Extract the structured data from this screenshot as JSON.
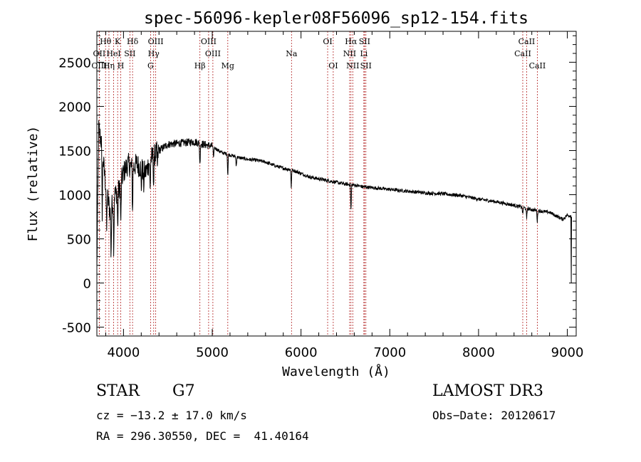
{
  "chart_data": {
    "type": "line",
    "title": "spec-56096-kepler08F56096_sp12-154.fits",
    "xlabel": "Wavelength (Å)",
    "ylabel": "Flux (relative)",
    "xlim": [
      3700,
      9100
    ],
    "ylim": [
      -600,
      2850
    ],
    "xticks": [
      4000,
      5000,
      6000,
      7000,
      8000,
      9000
    ],
    "yticks": [
      -500,
      0,
      500,
      1000,
      1500,
      2000,
      2500
    ],
    "x_minor_step": 200,
    "y_minor_step": 100,
    "line_color": "#000000",
    "marker_color": "#b22222",
    "continuum": [
      [
        3700,
        150
      ],
      [
        3720,
        1750
      ],
      [
        3750,
        1600
      ],
      [
        3800,
        1100
      ],
      [
        3850,
        800
      ],
      [
        3900,
        1000
      ],
      [
        3950,
        1050
      ],
      [
        4000,
        1250
      ],
      [
        4050,
        1350
      ],
      [
        4100,
        1300
      ],
      [
        4150,
        1350
      ],
      [
        4200,
        1300
      ],
      [
        4250,
        1250
      ],
      [
        4300,
        1400
      ],
      [
        4350,
        1450
      ],
      [
        4400,
        1500
      ],
      [
        4500,
        1570
      ],
      [
        4600,
        1580
      ],
      [
        4700,
        1590
      ],
      [
        4800,
        1600
      ],
      [
        4900,
        1570
      ],
      [
        5000,
        1550
      ],
      [
        5100,
        1480
      ],
      [
        5200,
        1450
      ],
      [
        5300,
        1420
      ],
      [
        5400,
        1400
      ],
      [
        5500,
        1390
      ],
      [
        5600,
        1370
      ],
      [
        5700,
        1330
      ],
      [
        5800,
        1300
      ],
      [
        5900,
        1280
      ],
      [
        6000,
        1240
      ],
      [
        6100,
        1200
      ],
      [
        6200,
        1180
      ],
      [
        6300,
        1160
      ],
      [
        6400,
        1140
      ],
      [
        6500,
        1120
      ],
      [
        6600,
        1110
      ],
      [
        6700,
        1090
      ],
      [
        6800,
        1080
      ],
      [
        7000,
        1060
      ],
      [
        7200,
        1040
      ],
      [
        7400,
        1020
      ],
      [
        7600,
        1010
      ],
      [
        7800,
        990
      ],
      [
        8000,
        950
      ],
      [
        8200,
        920
      ],
      [
        8400,
        880
      ],
      [
        8600,
        830
      ],
      [
        8800,
        800
      ],
      [
        8950,
        720
      ],
      [
        9000,
        770
      ],
      [
        9040,
        760
      ]
    ],
    "absorption_dips": [
      [
        3760,
        700
      ],
      [
        3810,
        500
      ],
      [
        3860,
        550
      ],
      [
        3890,
        600
      ],
      [
        3935,
        450
      ],
      [
        3970,
        500
      ],
      [
        4102,
        500
      ],
      [
        4200,
        250
      ],
      [
        4227,
        200
      ],
      [
        4300,
        350
      ],
      [
        4340,
        350
      ],
      [
        4383,
        200
      ],
      [
        4861,
        250
      ],
      [
        5015,
        150
      ],
      [
        5175,
        260
      ],
      [
        5270,
        120
      ],
      [
        5890,
        200
      ],
      [
        6563,
        320
      ],
      [
        8498,
        90
      ],
      [
        8542,
        130
      ],
      [
        8662,
        130
      ]
    ],
    "end_drop": [
      [
        9045,
        0
      ],
      [
        9048,
        750
      ]
    ],
    "lines": [
      {
        "label": "Hθ",
        "wavelength": 3798,
        "row": 1
      },
      {
        "label": "OII",
        "wavelength": 3727,
        "row": 2
      },
      {
        "label": "OIII",
        "wavelength": 3727,
        "row": 3
      },
      {
        "label": "Hη",
        "wavelength": 3836,
        "row": 3
      },
      {
        "label": "K",
        "wavelength": 3934,
        "row": 1
      },
      {
        "label": "HeI",
        "wavelength": 3889,
        "row": 2
      },
      {
        "label": "H",
        "wavelength": 3969,
        "row": 3
      },
      {
        "label": "SII",
        "wavelength": 4072,
        "row": 2
      },
      {
        "label": "Hδ",
        "wavelength": 4102,
        "row": 1
      },
      {
        "label": "OIII",
        "wavelength": 4363,
        "row": 1
      },
      {
        "label": "Hγ",
        "wavelength": 4340,
        "row": 2
      },
      {
        "label": "G",
        "wavelength": 4305,
        "row": 3
      },
      {
        "label": "Hβ",
        "wavelength": 4861,
        "row": 3
      },
      {
        "label": "OIII",
        "wavelength": 4959,
        "row": 1
      },
      {
        "label": "OIII",
        "wavelength": 5007,
        "row": 2
      },
      {
        "label": "Mg",
        "wavelength": 5175,
        "row": 3
      },
      {
        "label": "Na",
        "wavelength": 5893,
        "row": 2
      },
      {
        "label": "OI",
        "wavelength": 6300,
        "row": 1
      },
      {
        "label": "OI",
        "wavelength": 6363,
        "row": 3
      },
      {
        "label": "Hα",
        "wavelength": 6563,
        "row": 1
      },
      {
        "label": "NII",
        "wavelength": 6548,
        "row": 2
      },
      {
        "label": "NII",
        "wavelength": 6583,
        "row": 3
      },
      {
        "label": "SII",
        "wavelength": 6716,
        "row": 1
      },
      {
        "label": "Li",
        "wavelength": 6708,
        "row": 2
      },
      {
        "label": "SII",
        "wavelength": 6731,
        "row": 3
      },
      {
        "label": "CaII",
        "wavelength": 8542,
        "row": 1
      },
      {
        "label": "CaII",
        "wavelength": 8498,
        "row": 2
      },
      {
        "label": "CaII",
        "wavelength": 8662,
        "row": 3
      }
    ]
  },
  "info": {
    "object_class": "STAR",
    "subclass": "G7",
    "survey": "LAMOST DR3",
    "redshift": "cz = −13.2 ± 17.0 km/s",
    "obs_date": "Obs−Date: 20120617",
    "coords": "RA = 296.30550, DEC =  41.40164"
  }
}
